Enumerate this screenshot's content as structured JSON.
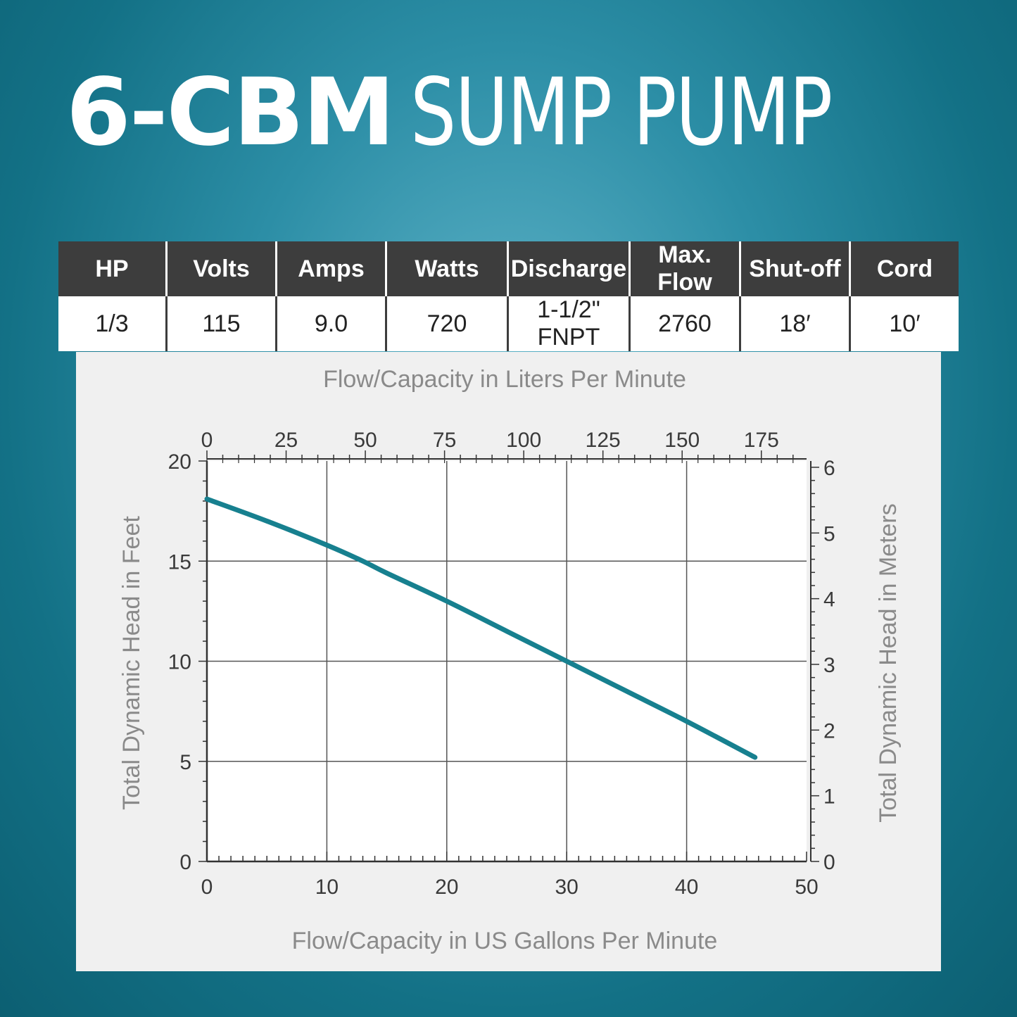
{
  "title": {
    "model": "6-CBM",
    "product": "SUMP PUMP"
  },
  "specs": {
    "headers": [
      "HP",
      "Volts",
      "Amps",
      "Watts",
      "Discharge",
      "Max. Flow",
      "Shut-off",
      "Cord"
    ],
    "values": [
      "1/3",
      "115",
      "9.0",
      "720",
      "1-1/2\" FNPT",
      "2760",
      "18′",
      "10′"
    ]
  },
  "colors": {
    "curve": "#17808f",
    "header_bg": "#3d3d3d",
    "panel_bg": "#f0f0f0"
  },
  "chart_data": {
    "type": "line",
    "xlabel": "Flow/Capacity in US Gallons Per Minute",
    "x2label": "Flow/Capacity in Liters Per Minute",
    "ylabel": "Total Dynamic Head in Feet",
    "y2label": "Total Dynamic Head in Meters",
    "xlim": [
      0,
      50
    ],
    "ylim": [
      0,
      20
    ],
    "x2lim": [
      0,
      189.27
    ],
    "y2lim": [
      0,
      6.096
    ],
    "xticks": [
      "0",
      "10",
      "20",
      "30",
      "40",
      "50"
    ],
    "yticks": [
      "0",
      "5",
      "10",
      "15",
      "20"
    ],
    "x2ticks": [
      "0",
      "25",
      "50",
      "75",
      "100",
      "125",
      "150",
      "175"
    ],
    "y2ticks": [
      "0",
      "1",
      "2",
      "3",
      "4",
      "5",
      "6"
    ],
    "grid": true,
    "series": [
      {
        "x": [
          0,
          5,
          10,
          13,
          15,
          20,
          25,
          30,
          35,
          40,
          45.7
        ],
        "y": [
          18.1,
          17.0,
          15.8,
          15.0,
          14.4,
          13.0,
          11.5,
          10.0,
          8.5,
          7.0,
          5.2
        ]
      }
    ]
  }
}
